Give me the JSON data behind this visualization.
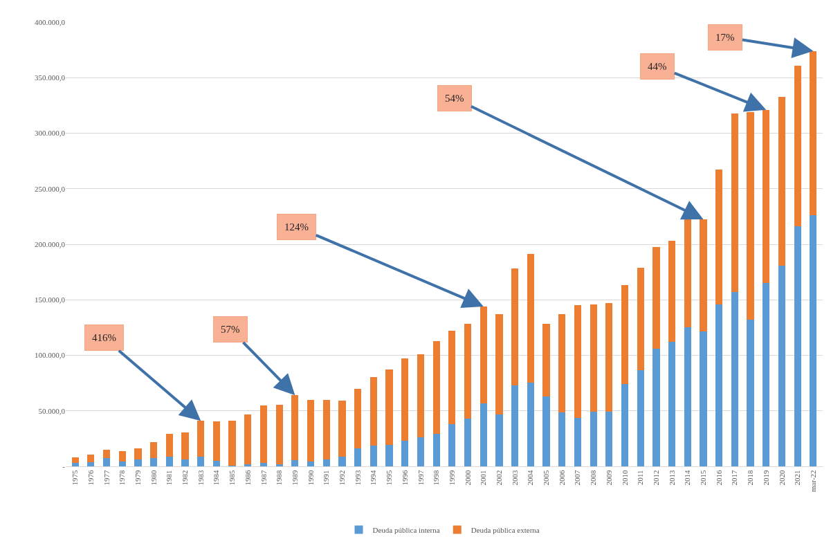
{
  "chart_data": {
    "type": "bar",
    "stacked": true,
    "categories": [
      "1975",
      "1976",
      "1977",
      "1978",
      "1979",
      "1980",
      "1981",
      "1982",
      "1983",
      "1984",
      "1985",
      "1986",
      "1987",
      "1988",
      "1989",
      "1990",
      "1991",
      "1992",
      "1993",
      "1994",
      "1995",
      "1996",
      "1997",
      "1998",
      "1999",
      "2000",
      "2001",
      "2002",
      "2003",
      "2004",
      "2005",
      "2006",
      "2007",
      "2008",
      "2009",
      "2010",
      "2011",
      "2012",
      "2013",
      "2014",
      "2015",
      "2016",
      "2017",
      "2018",
      "2019",
      "2020",
      "2021",
      "mar-22"
    ],
    "series": [
      {
        "name": "Deuda pública interna",
        "color": "#5b9bd5",
        "values": [
          3000,
          4000,
          7500,
          4500,
          6000,
          7500,
          9000,
          6000,
          9000,
          5000,
          500,
          2000,
          3000,
          2000,
          5500,
          4500,
          6500,
          8500,
          16000,
          19000,
          19500,
          23000,
          26000,
          29500,
          38000,
          43000,
          56500,
          46500,
          73000,
          75500,
          63000,
          48500,
          43500,
          49000,
          49000,
          74000,
          86500,
          106000,
          112000,
          125500,
          121500,
          145500,
          157000,
          132000,
          165000,
          181000,
          216000,
          226000
        ]
      },
      {
        "name": "Deuda pública externa",
        "color": "#ed7d31",
        "values": [
          5300,
          6500,
          7500,
          9000,
          10000,
          14000,
          20500,
          24500,
          32000,
          35500,
          40500,
          45000,
          52000,
          53500,
          58500,
          55500,
          53500,
          51000,
          54000,
          61500,
          67500,
          74000,
          75000,
          83000,
          84000,
          85500,
          87500,
          90500,
          105500,
          115500,
          65500,
          88500,
          101500,
          97000,
          98000,
          89000,
          92500,
          91500,
          91000,
          97500,
          101000,
          121500,
          161000,
          187000,
          156000,
          152000,
          145000,
          148000
        ]
      }
    ],
    "ylim": [
      0,
      400000
    ],
    "yticks": [
      {
        "value": 0,
        "label": "-"
      },
      {
        "value": 50000,
        "label": "50.000,0"
      },
      {
        "value": 100000,
        "label": "100.000,0"
      },
      {
        "value": 150000,
        "label": "150.000,0"
      },
      {
        "value": 200000,
        "label": "200.000,0"
      },
      {
        "value": 250000,
        "label": "250.000,0"
      },
      {
        "value": 300000,
        "label": "300.000,0"
      },
      {
        "value": 350000,
        "label": "350.000,0"
      },
      {
        "value": 400000,
        "label": "400.000,0"
      }
    ],
    "grid": "y",
    "legend": "bottom",
    "annotations": [
      {
        "text": "416%",
        "x": "1983",
        "y": 41000
      },
      {
        "text": "57%",
        "x": "1989",
        "y": 64000
      },
      {
        "text": "124%",
        "x": "2001",
        "y": 144000
      },
      {
        "text": "54%",
        "x": "2015",
        "y": 222500
      },
      {
        "text": "44%",
        "x": "2019",
        "y": 321000
      },
      {
        "text": "17%",
        "x": "mar-22",
        "y": 374000
      }
    ]
  }
}
